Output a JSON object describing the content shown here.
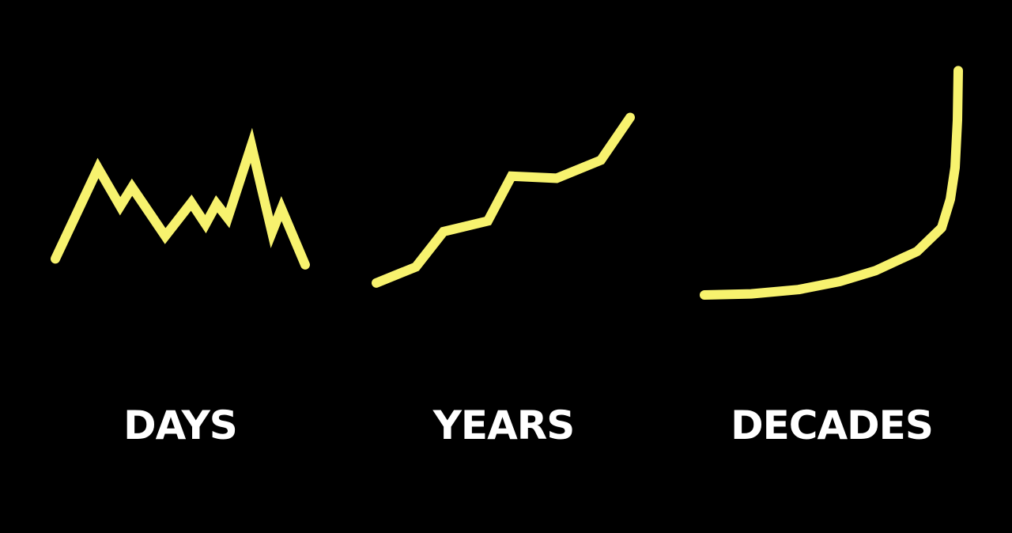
{
  "colors": {
    "background": "#000000",
    "line": "#f7f26e",
    "label": "#ffffff"
  },
  "chart_data": [
    {
      "type": "line",
      "xlabel": "DAYS",
      "x": [
        0,
        1,
        2,
        3,
        4,
        5,
        6,
        7,
        8,
        9,
        10,
        11,
        12
      ],
      "series": [
        {
          "values": [
            2.5,
            10.1,
            6.9,
            8.5,
            4.4,
            7.2,
            5.4,
            7.1,
            5.9,
            12.0,
            4.7,
            6.7,
            2.0
          ]
        }
      ]
    },
    {
      "type": "line",
      "xlabel": "YEARS",
      "x": [
        0,
        1,
        2,
        3,
        4,
        5,
        6,
        7
      ],
      "series": [
        {
          "values": [
            1.5,
            3.0,
            6.3,
            7.3,
            11.5,
            11.3,
            13.0,
            17.0
          ]
        }
      ]
    },
    {
      "type": "line",
      "xlabel": "DECADES",
      "x": [
        0,
        1,
        2,
        3,
        4,
        5,
        6,
        7,
        8,
        9,
        10
      ],
      "series": [
        {
          "values": [
            0.3,
            0.5,
            1.3,
            2.8,
            4.8,
            8.4,
            12.8,
            18.1,
            24.0,
            32.8,
            42.0
          ]
        }
      ]
    }
  ]
}
